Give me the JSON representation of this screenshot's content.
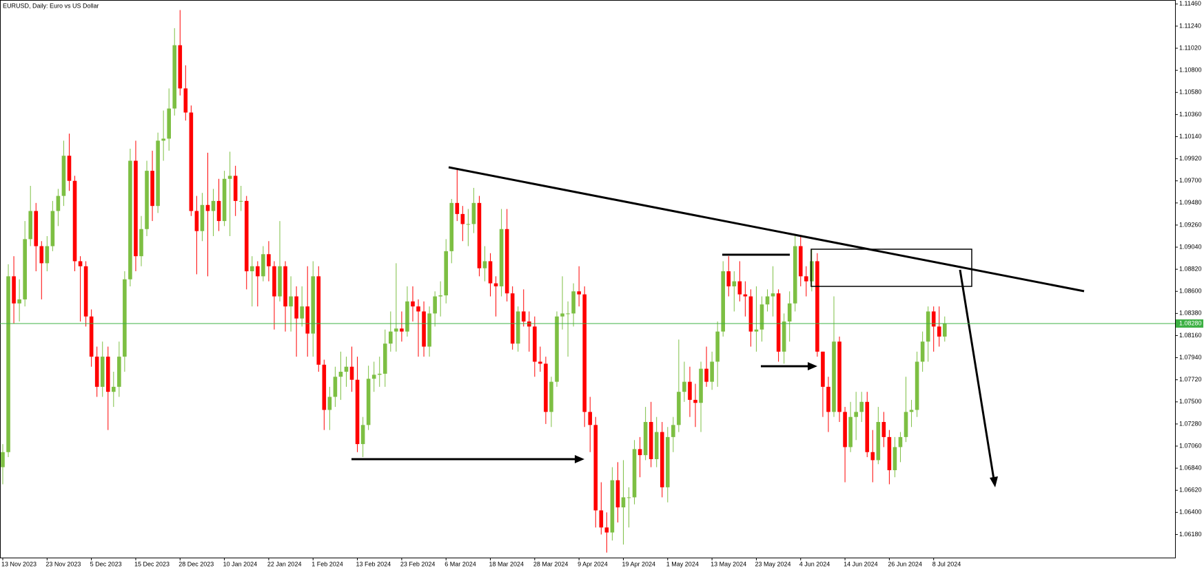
{
  "chart_data": {
    "type": "candlestick",
    "title": "EURUSD, Daily:  Euro vs US Dollar",
    "up_color": "#7dbf43",
    "down_color": "#ff0000",
    "grid": false,
    "ylim": [
      1.0595,
      1.115
    ],
    "yticks": [
      {
        "value": 1.1146,
        "label": "1.11460"
      },
      {
        "value": 1.1124,
        "label": "1.11240"
      },
      {
        "value": 1.1102,
        "label": "1.11020"
      },
      {
        "value": 1.108,
        "label": "1.10800"
      },
      {
        "value": 1.1058,
        "label": "1.10580"
      },
      {
        "value": 1.1036,
        "label": "1.10360"
      },
      {
        "value": 1.1014,
        "label": "1.10140"
      },
      {
        "value": 1.0992,
        "label": "1.09920"
      },
      {
        "value": 1.097,
        "label": "1.09700"
      },
      {
        "value": 1.0948,
        "label": "1.09480"
      },
      {
        "value": 1.0926,
        "label": "1.09260"
      },
      {
        "value": 1.0904,
        "label": "1.09040"
      },
      {
        "value": 1.0882,
        "label": "1.08820"
      },
      {
        "value": 1.086,
        "label": "1.08600"
      },
      {
        "value": 1.0838,
        "label": "1.08380"
      },
      {
        "value": 1.0816,
        "label": "1.08160"
      },
      {
        "value": 1.0794,
        "label": "1.07940"
      },
      {
        "value": 1.0772,
        "label": "1.07720"
      },
      {
        "value": 1.075,
        "label": "1.07500"
      },
      {
        "value": 1.0728,
        "label": "1.07280"
      },
      {
        "value": 1.0706,
        "label": "1.07060"
      },
      {
        "value": 1.0684,
        "label": "1.06840"
      },
      {
        "value": 1.0662,
        "label": "1.06620"
      },
      {
        "value": 1.064,
        "label": "1.06400"
      },
      {
        "value": 1.0618,
        "label": "1.06180"
      }
    ],
    "current_price": {
      "value": 1.0828,
      "label": "1.08280",
      "color": "#3cb043"
    },
    "categories": [
      "13 Nov 2023",
      null,
      null,
      null,
      null,
      null,
      null,
      null,
      "23 Nov 2023",
      null,
      null,
      null,
      null,
      null,
      null,
      null,
      "5 Dec 2023",
      null,
      null,
      null,
      null,
      null,
      null,
      null,
      "15 Dec 2023",
      null,
      null,
      null,
      null,
      null,
      null,
      null,
      "28 Dec 2023",
      null,
      null,
      null,
      null,
      null,
      null,
      null,
      "10 Jan 2024",
      null,
      null,
      null,
      null,
      null,
      null,
      null,
      "22 Jan 2024",
      null,
      null,
      null,
      null,
      null,
      null,
      null,
      "1 Feb 2024",
      null,
      null,
      null,
      null,
      null,
      null,
      null,
      "13 Feb 2024",
      null,
      null,
      null,
      null,
      null,
      null,
      null,
      "23 Feb 2024",
      null,
      null,
      null,
      null,
      null,
      null,
      null,
      "6 Mar 2024",
      null,
      null,
      null,
      null,
      null,
      null,
      null,
      "18 Mar 2024",
      null,
      null,
      null,
      null,
      null,
      null,
      null,
      "28 Mar 2024",
      null,
      null,
      null,
      null,
      null,
      null,
      null,
      "9 Apr 2024",
      null,
      null,
      null,
      null,
      null,
      null,
      null,
      "19 Apr 2024",
      null,
      null,
      null,
      null,
      null,
      null,
      null,
      "1 May 2024",
      null,
      null,
      null,
      null,
      null,
      null,
      null,
      "13 May 2024",
      null,
      null,
      null,
      null,
      null,
      null,
      null,
      "23 May 2024",
      null,
      null,
      null,
      null,
      null,
      null,
      null,
      "4 Jun 2024",
      null,
      null,
      null,
      null,
      null,
      null,
      null,
      "14 Jun 2024",
      null,
      null,
      null,
      null,
      null,
      null,
      null,
      "26 Jun 2024",
      null,
      null,
      null,
      null,
      null,
      null,
      null,
      "8 Jul 2024",
      null,
      null
    ],
    "ohlc": [
      [
        1.0685,
        1.0708,
        1.0668,
        1.07
      ],
      [
        1.07,
        1.0887,
        1.0695,
        1.0875
      ],
      [
        1.0875,
        1.0895,
        1.0828,
        1.0848
      ],
      [
        1.0848,
        1.0872,
        1.083,
        1.0852
      ],
      [
        1.0852,
        1.093,
        1.0845,
        1.0912
      ],
      [
        1.0912,
        1.0965,
        1.0905,
        1.094
      ],
      [
        1.094,
        1.0948,
        1.088,
        1.0905
      ],
      [
        1.0905,
        1.091,
        1.0852,
        1.0888
      ],
      [
        1.0888,
        1.0915,
        1.088,
        1.0905
      ],
      [
        1.0905,
        1.095,
        1.09,
        1.094
      ],
      [
        1.094,
        1.0962,
        1.0925,
        1.0955
      ],
      [
        1.0955,
        1.101,
        1.0945,
        1.0995
      ],
      [
        1.0995,
        1.1017,
        1.096,
        1.097
      ],
      [
        1.097,
        1.0975,
        1.088,
        1.089
      ],
      [
        1.089,
        1.0895,
        1.083,
        1.0885
      ],
      [
        1.0885,
        1.089,
        1.0825,
        1.0835
      ],
      [
        1.0835,
        1.0842,
        1.0785,
        1.0795
      ],
      [
        1.0795,
        1.0805,
        1.0755,
        1.0765
      ],
      [
        1.0765,
        1.081,
        1.0755,
        1.0795
      ],
      [
        1.0795,
        1.0805,
        1.0722,
        1.076
      ],
      [
        1.076,
        1.078,
        1.0745,
        1.0765
      ],
      [
        1.0765,
        1.081,
        1.0755,
        1.0795
      ],
      [
        1.0795,
        1.088,
        1.078,
        1.0872
      ],
      [
        1.0872,
        1.1002,
        1.0865,
        1.099
      ],
      [
        1.099,
        1.101,
        1.088,
        1.0895
      ],
      [
        1.0895,
        1.0935,
        1.0885,
        1.0922
      ],
      [
        1.0922,
        1.099,
        1.0915,
        1.098
      ],
      [
        1.098,
        1.1,
        1.093,
        1.0945
      ],
      [
        1.0945,
        1.1018,
        1.0938,
        1.101
      ],
      [
        1.101,
        1.104,
        1.099,
        1.1012
      ],
      [
        1.1012,
        1.1062,
        1.1,
        1.1042
      ],
      [
        1.1042,
        1.1122,
        1.1035,
        1.1105
      ],
      [
        1.1105,
        1.114,
        1.1055,
        1.1062
      ],
      [
        1.1062,
        1.1085,
        1.103,
        1.1038
      ],
      [
        1.1038,
        1.1045,
        1.0935,
        1.094
      ],
      [
        1.094,
        1.0955,
        1.0877,
        1.092
      ],
      [
        1.092,
        1.0958,
        1.091,
        1.0946
      ],
      [
        1.0946,
        1.0998,
        1.0875,
        1.094
      ],
      [
        1.094,
        1.0962,
        1.0915,
        1.095
      ],
      [
        1.095,
        1.0972,
        1.092,
        1.093
      ],
      [
        1.093,
        1.098,
        1.0925,
        1.0972
      ],
      [
        1.0972,
        1.0999,
        1.0915,
        1.0975
      ],
      [
        1.0975,
        1.0985,
        1.0935,
        1.095
      ],
      [
        1.095,
        1.0965,
        1.094,
        1.095
      ],
      [
        1.095,
        1.0955,
        1.0862,
        1.088
      ],
      [
        1.088,
        1.0895,
        1.0845,
        1.0885
      ],
      [
        1.0885,
        1.089,
        1.0845,
        1.0875
      ],
      [
        1.0875,
        1.0905,
        1.087,
        1.0897
      ],
      [
        1.0897,
        1.091,
        1.087,
        1.0885
      ],
      [
        1.0885,
        1.089,
        1.0822,
        1.0855
      ],
      [
        1.0855,
        1.093,
        1.085,
        1.0885
      ],
      [
        1.0885,
        1.089,
        1.082,
        1.0845
      ],
      [
        1.0845,
        1.0875,
        1.082,
        1.0855
      ],
      [
        1.0855,
        1.0865,
        1.0795,
        1.0833
      ],
      [
        1.0833,
        1.0865,
        1.0825,
        1.0845
      ],
      [
        1.0845,
        1.0885,
        1.0795,
        1.0818
      ],
      [
        1.0818,
        1.089,
        1.0795,
        1.0875
      ],
      [
        1.0875,
        1.0885,
        1.078,
        1.0787
      ],
      [
        1.0787,
        1.0792,
        1.0722,
        1.0742
      ],
      [
        1.0742,
        1.0765,
        1.0722,
        1.0755
      ],
      [
        1.0755,
        1.0785,
        1.0745,
        1.0775
      ],
      [
        1.0775,
        1.08,
        1.0752,
        1.078
      ],
      [
        1.078,
        1.0795,
        1.0765,
        1.0785
      ],
      [
        1.0785,
        1.0805,
        1.076,
        1.0772
      ],
      [
        1.0772,
        1.0795,
        1.07,
        1.0708
      ],
      [
        1.0708,
        1.0735,
        1.0695,
        1.0727
      ],
      [
        1.0727,
        1.0786,
        1.0722,
        1.0773
      ],
      [
        1.0773,
        1.079,
        1.076,
        1.0777
      ],
      [
        1.0777,
        1.0795,
        1.0765,
        1.0778
      ],
      [
        1.0778,
        1.0822,
        1.0765,
        1.0808
      ],
      [
        1.0808,
        1.084,
        1.08,
        1.082
      ],
      [
        1.082,
        1.0888,
        1.08,
        1.0823
      ],
      [
        1.0823,
        1.084,
        1.081,
        1.082
      ],
      [
        1.082,
        1.0865,
        1.0815,
        1.085
      ],
      [
        1.085,
        1.0865,
        1.083,
        1.0845
      ],
      [
        1.0845,
        1.0852,
        1.0795,
        1.084
      ],
      [
        1.084,
        1.085,
        1.0795,
        1.0805
      ],
      [
        1.0805,
        1.0845,
        1.0795,
        1.0838
      ],
      [
        1.0838,
        1.086,
        1.0825,
        1.0855
      ],
      [
        1.0855,
        1.087,
        1.0835,
        1.0856
      ],
      [
        1.0856,
        1.0912,
        1.0848,
        1.09
      ],
      [
        1.09,
        1.0952,
        1.0888,
        1.0948
      ],
      [
        1.0948,
        1.0981,
        1.093,
        1.0937
      ],
      [
        1.0937,
        1.0945,
        1.091,
        1.0927
      ],
      [
        1.0927,
        1.0942,
        1.0905,
        1.0927
      ],
      [
        1.0927,
        1.0963,
        1.0918,
        1.0948
      ],
      [
        1.0948,
        1.0955,
        1.0875,
        1.0883
      ],
      [
        1.0883,
        1.0905,
        1.087,
        1.089
      ],
      [
        1.089,
        1.0898,
        1.0855,
        1.0868
      ],
      [
        1.0868,
        1.0875,
        1.0835,
        1.0865
      ],
      [
        1.0865,
        1.0942,
        1.0855,
        1.0922
      ],
      [
        1.0922,
        1.0942,
        1.085,
        1.0858
      ],
      [
        1.0858,
        1.0865,
        1.0802,
        1.0808
      ],
      [
        1.0808,
        1.0845,
        1.08,
        1.084
      ],
      [
        1.084,
        1.0862,
        1.0825,
        1.083
      ],
      [
        1.083,
        1.084,
        1.08,
        1.0825
      ],
      [
        1.0825,
        1.0835,
        1.0775,
        1.079
      ],
      [
        1.079,
        1.0805,
        1.078,
        1.0788
      ],
      [
        1.0788,
        1.0795,
        1.0728,
        1.074
      ],
      [
        1.074,
        1.0775,
        1.0725,
        1.077
      ],
      [
        1.077,
        1.084,
        1.0765,
        1.0835
      ],
      [
        1.0835,
        1.0875,
        1.0822,
        1.0838
      ],
      [
        1.0838,
        1.085,
        1.0795,
        1.0838
      ],
      [
        1.0838,
        1.0868,
        1.0825,
        1.086
      ],
      [
        1.086,
        1.0885,
        1.0845,
        1.0857
      ],
      [
        1.0857,
        1.0865,
        1.0725,
        1.074
      ],
      [
        1.074,
        1.0755,
        1.07,
        1.0727
      ],
      [
        1.0727,
        1.0735,
        1.0625,
        1.0642
      ],
      [
        1.0642,
        1.067,
        1.0618,
        1.0625
      ],
      [
        1.0625,
        1.064,
        1.06,
        1.062
      ],
      [
        1.062,
        1.0685,
        1.0612,
        1.0672
      ],
      [
        1.0672,
        1.069,
        1.063,
        1.0645
      ],
      [
        1.0645,
        1.0692,
        1.0608,
        1.0655
      ],
      [
        1.0655,
        1.0665,
        1.0625,
        1.0655
      ],
      [
        1.0655,
        1.0712,
        1.0648,
        1.0703
      ],
      [
        1.0703,
        1.0715,
        1.0675,
        1.0697
      ],
      [
        1.0697,
        1.0745,
        1.0692,
        1.073
      ],
      [
        1.073,
        1.075,
        1.0685,
        1.0693
      ],
      [
        1.0693,
        1.0735,
        1.0685,
        1.072
      ],
      [
        1.072,
        1.073,
        1.0655,
        1.0665
      ],
      [
        1.0665,
        1.0725,
        1.065,
        1.0715
      ],
      [
        1.0715,
        1.0735,
        1.07,
        1.0727
      ],
      [
        1.0727,
        1.0812,
        1.072,
        1.076
      ],
      [
        1.076,
        1.079,
        1.075,
        1.077
      ],
      [
        1.077,
        1.0785,
        1.0735,
        1.0752
      ],
      [
        1.0752,
        1.0768,
        1.0725,
        1.0749
      ],
      [
        1.0749,
        1.079,
        1.072,
        1.0783
      ],
      [
        1.0783,
        1.0805,
        1.0765,
        1.077
      ],
      [
        1.077,
        1.08,
        1.0762,
        1.079
      ],
      [
        1.079,
        1.083,
        1.0765,
        1.082
      ],
      [
        1.082,
        1.089,
        1.0815,
        1.088
      ],
      [
        1.088,
        1.0895,
        1.0855,
        1.0865
      ],
      [
        1.0865,
        1.088,
        1.084,
        1.087
      ],
      [
        1.087,
        1.089,
        1.085,
        1.0857
      ],
      [
        1.0857,
        1.087,
        1.0835,
        1.0855
      ],
      [
        1.0855,
        1.0862,
        1.0805,
        1.082
      ],
      [
        1.082,
        1.0865,
        1.08,
        1.0822
      ],
      [
        1.0822,
        1.0855,
        1.081,
        1.0847
      ],
      [
        1.0847,
        1.0862,
        1.084,
        1.0855
      ],
      [
        1.0855,
        1.0885,
        1.0835,
        1.0858
      ],
      [
        1.0858,
        1.0862,
        1.079,
        1.08
      ],
      [
        1.08,
        1.0838,
        1.0788,
        1.083
      ],
      [
        1.083,
        1.086,
        1.081,
        1.0848
      ],
      [
        1.0848,
        1.0915,
        1.084,
        1.0905
      ],
      [
        1.0905,
        1.0915,
        1.0865,
        1.0875
      ],
      [
        1.0875,
        1.0885,
        1.0855,
        1.087
      ],
      [
        1.087,
        1.0902,
        1.086,
        1.089
      ],
      [
        1.089,
        1.0898,
        1.0795,
        1.08
      ],
      [
        1.08,
        1.08,
        1.0735,
        1.0765
      ],
      [
        1.0765,
        1.0775,
        1.072,
        1.074
      ],
      [
        1.074,
        1.0855,
        1.0735,
        1.081
      ],
      [
        1.081,
        1.0815,
        1.073,
        1.074
      ],
      [
        1.074,
        1.0745,
        1.067,
        1.0705
      ],
      [
        1.0705,
        1.075,
        1.07,
        1.0735
      ],
      [
        1.0735,
        1.076,
        1.0712,
        1.074
      ],
      [
        1.074,
        1.076,
        1.073,
        1.075
      ],
      [
        1.075,
        1.076,
        1.0695,
        1.07
      ],
      [
        1.07,
        1.0722,
        1.067,
        1.0692
      ],
      [
        1.0692,
        1.0745,
        1.0688,
        1.073
      ],
      [
        1.073,
        1.074,
        1.0705,
        1.0715
      ],
      [
        1.0715,
        1.0722,
        1.0668,
        1.0682
      ],
      [
        1.0682,
        1.0715,
        1.0675,
        1.0705
      ],
      [
        1.0705,
        1.072,
        1.069,
        1.0715
      ],
      [
        1.0715,
        1.0775,
        1.071,
        1.074
      ],
      [
        1.074,
        1.0752,
        1.0725,
        1.0742
      ],
      [
        1.0742,
        1.08,
        1.0735,
        1.079
      ],
      [
        1.079,
        1.082,
        1.078,
        1.081
      ],
      [
        1.081,
        1.0845,
        1.079,
        1.084
      ],
      [
        1.084,
        1.0845,
        1.08,
        1.0825
      ],
      [
        1.0825,
        1.0845,
        1.0805,
        1.0815
      ],
      [
        1.0815,
        1.0835,
        1.081,
        1.0828
      ]
    ]
  }
}
